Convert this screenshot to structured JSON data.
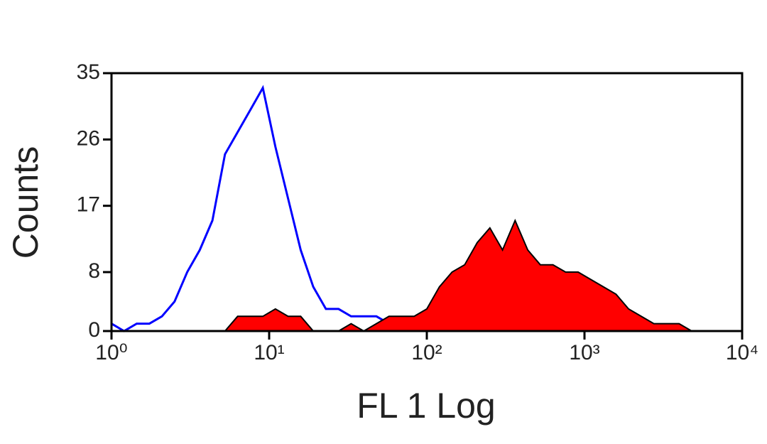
{
  "chart_data": {
    "type": "line",
    "x_label": "FL 1 Log",
    "y_label": "Counts",
    "xscale": "log",
    "xlim": [
      1,
      10000
    ],
    "xticks": [
      {
        "value": 1,
        "label": "10⁰"
      },
      {
        "value": 10,
        "label": "10¹"
      },
      {
        "value": 100,
        "label": "10²"
      },
      {
        "value": 1000,
        "label": "10³"
      },
      {
        "value": 10000,
        "label": "10⁴"
      }
    ],
    "ylim": [
      0,
      35
    ],
    "yticks": [
      0,
      8,
      17,
      26,
      35
    ],
    "x": [
      1,
      1.202,
      1.445,
      1.738,
      2.089,
      2.512,
      3.02,
      3.631,
      4.365,
      5.248,
      6.31,
      7.586,
      9.12,
      10.96,
      13.18,
      15.85,
      19.05,
      22.91,
      27.54,
      33.11,
      39.81,
      47.86,
      57.54,
      69.18,
      83.18,
      100,
      120.2,
      144.5,
      173.8,
      208.9,
      251.2,
      302,
      363.1,
      436.5,
      524.8,
      631,
      758.6,
      912,
      1096,
      1318,
      1585,
      1905,
      2291,
      2754,
      3311,
      3981,
      4786,
      5754,
      6918,
      8318,
      10000
    ],
    "series": [
      {
        "color": "#0000ff",
        "filled": false,
        "values": [
          1,
          0,
          1,
          1,
          2,
          4,
          8,
          11,
          15,
          24,
          27,
          30,
          33,
          25,
          18,
          11,
          6,
          3,
          3,
          2,
          2,
          2,
          1,
          1,
          1,
          0,
          0,
          0,
          0,
          0,
          0,
          0,
          0,
          0,
          0,
          0,
          0,
          0,
          0,
          0,
          0,
          0,
          0,
          0,
          0,
          0,
          0,
          0,
          0,
          0,
          0
        ]
      },
      {
        "color": "#ff0000",
        "filled": true,
        "values": [
          0,
          0,
          0,
          0,
          0,
          0,
          0,
          0,
          0,
          0,
          2,
          2,
          2,
          3,
          2,
          2,
          0,
          0,
          0,
          1,
          0,
          1,
          2,
          2,
          2,
          3,
          6,
          8,
          9,
          12,
          14,
          11,
          15,
          11,
          9,
          9,
          8,
          8,
          7,
          6,
          5,
          3,
          2,
          1,
          1,
          1,
          0,
          0,
          0,
          0,
          0
        ]
      }
    ]
  }
}
